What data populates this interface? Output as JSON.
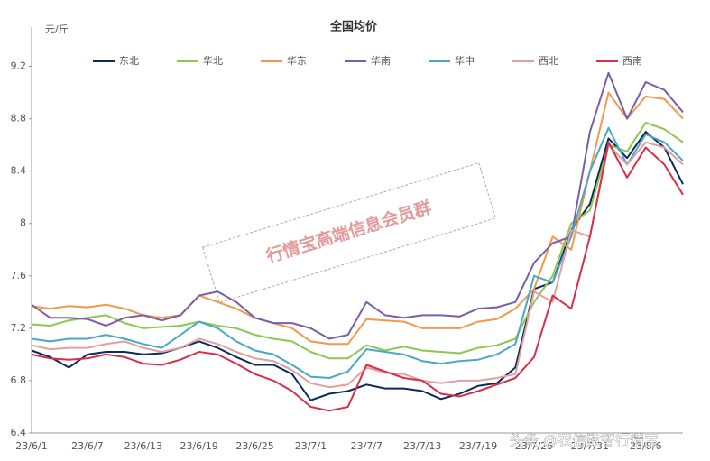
{
  "chart_data": {
    "type": "line",
    "title": "全国均价",
    "y_label": "元/斤",
    "categories": [
      "23/6/1",
      null,
      null,
      "23/6/7",
      null,
      null,
      "23/6/13",
      null,
      null,
      "23/6/19",
      null,
      null,
      "23/6/25",
      null,
      null,
      "23/7/1",
      null,
      null,
      "23/7/7",
      null,
      null,
      "23/7/13",
      null,
      null,
      "23/7/19",
      null,
      null,
      "23/7/25",
      null,
      null,
      "23/7/31",
      null,
      null,
      "23/8/6",
      null,
      null
    ],
    "series": [
      {
        "name": "东北",
        "color": "#0b2a5b",
        "values": [
          7.03,
          6.98,
          6.9,
          7.0,
          7.02,
          7.02,
          7.0,
          7.01,
          7.05,
          7.1,
          7.05,
          6.98,
          6.92,
          6.92,
          6.85,
          6.65,
          6.7,
          6.72,
          6.77,
          6.74,
          6.74,
          6.72,
          6.66,
          6.7,
          6.76,
          6.78,
          6.9,
          7.5,
          7.55,
          7.95,
          8.15,
          8.65,
          8.5,
          8.7,
          8.58,
          8.3
        ]
      },
      {
        "name": "华北",
        "color": "#8cc751",
        "values": [
          7.23,
          7.22,
          7.26,
          7.28,
          7.3,
          7.24,
          7.2,
          7.21,
          7.22,
          7.25,
          7.22,
          7.2,
          7.15,
          7.12,
          7.1,
          7.02,
          6.97,
          6.97,
          7.07,
          7.03,
          7.06,
          7.03,
          7.02,
          7.01,
          7.05,
          7.07,
          7.12,
          7.4,
          7.6,
          8.0,
          8.1,
          8.6,
          8.55,
          8.77,
          8.72,
          8.62
        ]
      },
      {
        "name": "华东",
        "color": "#f0994a",
        "values": [
          7.37,
          7.35,
          7.37,
          7.36,
          7.38,
          7.35,
          7.3,
          7.28,
          7.3,
          7.45,
          7.4,
          7.35,
          7.28,
          7.24,
          7.2,
          7.1,
          7.08,
          7.08,
          7.27,
          7.26,
          7.25,
          7.2,
          7.2,
          7.2,
          7.25,
          7.27,
          7.35,
          7.5,
          7.9,
          7.8,
          8.4,
          9.0,
          8.8,
          8.97,
          8.95,
          8.8
        ]
      },
      {
        "name": "华南",
        "color": "#7b5ea7",
        "values": [
          7.38,
          7.28,
          7.28,
          7.27,
          7.22,
          7.28,
          7.3,
          7.26,
          7.3,
          7.45,
          7.48,
          7.4,
          7.28,
          7.24,
          7.24,
          7.2,
          7.12,
          7.15,
          7.4,
          7.3,
          7.28,
          7.3,
          7.3,
          7.29,
          7.35,
          7.36,
          7.4,
          7.7,
          7.85,
          7.9,
          8.7,
          9.15,
          8.8,
          9.08,
          9.02,
          8.85
        ]
      },
      {
        "name": "华中",
        "color": "#4aa7c7",
        "values": [
          7.12,
          7.1,
          7.12,
          7.12,
          7.15,
          7.12,
          7.08,
          7.05,
          7.15,
          7.25,
          7.2,
          7.1,
          7.03,
          7.0,
          6.92,
          6.83,
          6.82,
          6.87,
          7.04,
          7.02,
          7.0,
          6.95,
          6.93,
          6.95,
          6.96,
          7.0,
          7.08,
          7.6,
          7.55,
          7.9,
          8.4,
          8.73,
          8.45,
          8.68,
          8.62,
          8.48
        ]
      },
      {
        "name": "西北",
        "color": "#e0a09f",
        "values": [
          7.07,
          7.04,
          7.05,
          7.05,
          7.08,
          7.1,
          7.05,
          7.02,
          7.05,
          7.12,
          7.08,
          7.02,
          6.97,
          6.95,
          6.88,
          6.78,
          6.75,
          6.77,
          6.9,
          6.86,
          6.85,
          6.8,
          6.78,
          6.8,
          6.8,
          6.82,
          6.85,
          7.48,
          7.4,
          7.95,
          7.9,
          8.6,
          8.45,
          8.62,
          8.58,
          8.45
        ]
      },
      {
        "name": "西南",
        "color": "#d62f4a",
        "values": [
          7.0,
          6.97,
          6.96,
          6.97,
          7.0,
          6.98,
          6.93,
          6.92,
          6.96,
          7.02,
          7.0,
          6.93,
          6.85,
          6.8,
          6.72,
          6.6,
          6.57,
          6.6,
          6.92,
          6.87,
          6.82,
          6.8,
          6.7,
          6.68,
          6.72,
          6.77,
          6.82,
          6.98,
          7.45,
          7.35,
          7.9,
          8.62,
          8.35,
          8.58,
          8.45,
          8.22
        ]
      }
    ],
    "ylim": [
      6.4,
      9.5
    ],
    "yticks": [
      6.4,
      6.8,
      7.2,
      7.6,
      8,
      8.4,
      8.8,
      9.2
    ],
    "grid": false,
    "legend": "top",
    "annotations": [
      "行情宝高端信息会员群",
      "头条 @农信数智行情宝"
    ]
  }
}
